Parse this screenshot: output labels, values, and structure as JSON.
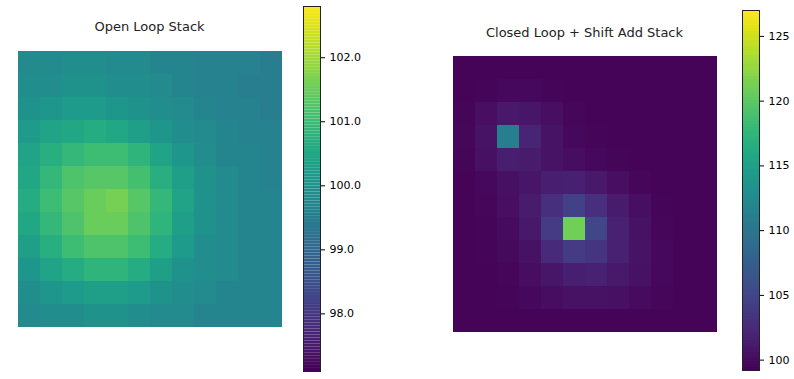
{
  "chart_data": [
    {
      "type": "heatmap",
      "title": "Open Loop Stack",
      "tick_labels": false,
      "color_range": [
        97.1,
        102.8
      ],
      "color_ticks": [
        98,
        99,
        100,
        101,
        102
      ],
      "cells": [
        [
          99.8,
          99.8,
          99.9,
          99.9,
          99.8,
          99.8,
          99.7,
          99.7,
          99.6,
          99.6,
          99.6,
          99.5
        ],
        [
          99.9,
          99.9,
          100.0,
          100.0,
          99.9,
          99.9,
          99.8,
          99.7,
          99.6,
          99.6,
          99.5,
          99.5
        ],
        [
          100.0,
          100.1,
          100.2,
          100.2,
          100.1,
          100.0,
          99.9,
          99.8,
          99.7,
          99.6,
          99.6,
          99.5
        ],
        [
          100.2,
          100.4,
          100.5,
          100.6,
          100.5,
          100.3,
          100.1,
          99.9,
          99.8,
          99.7,
          99.6,
          99.6
        ],
        [
          100.4,
          100.7,
          100.9,
          101.0,
          101.0,
          100.8,
          100.4,
          100.1,
          99.9,
          99.7,
          99.7,
          99.6
        ],
        [
          100.5,
          100.9,
          101.2,
          101.3,
          101.3,
          101.1,
          100.7,
          100.3,
          100.0,
          99.8,
          99.7,
          99.6
        ],
        [
          100.6,
          101.0,
          101.3,
          101.5,
          101.6,
          101.3,
          100.9,
          100.4,
          100.0,
          99.8,
          99.7,
          99.7
        ],
        [
          100.5,
          100.9,
          101.2,
          101.5,
          101.5,
          101.2,
          100.8,
          100.3,
          100.0,
          99.8,
          99.7,
          99.7
        ],
        [
          100.3,
          100.7,
          101.0,
          101.2,
          101.2,
          101.0,
          100.6,
          100.2,
          99.9,
          99.8,
          99.7,
          99.7
        ],
        [
          100.1,
          100.4,
          100.6,
          100.8,
          100.8,
          100.6,
          100.3,
          100.0,
          99.9,
          99.8,
          99.7,
          99.7
        ],
        [
          99.9,
          100.1,
          100.2,
          100.3,
          100.3,
          100.2,
          100.0,
          99.9,
          99.8,
          99.7,
          99.7,
          99.7
        ],
        [
          99.8,
          99.9,
          99.9,
          100.0,
          100.0,
          99.9,
          99.8,
          99.8,
          99.7,
          99.7,
          99.7,
          99.7
        ]
      ]
    },
    {
      "type": "heatmap",
      "title": "Closed Loop + Shift Add Stack",
      "tick_labels": false,
      "color_range": [
        99.2,
        127
      ],
      "color_ticks": [
        100,
        105,
        110,
        115,
        120,
        125
      ],
      "cells": [
        [
          99.5,
          99.5,
          99.5,
          99.5,
          99.5,
          99.5,
          99.5,
          99.5,
          99.5,
          99.5,
          99.5,
          99.5
        ],
        [
          99.5,
          99.6,
          99.8,
          99.8,
          99.6,
          99.5,
          99.5,
          99.5,
          99.5,
          99.5,
          99.5,
          99.5
        ],
        [
          99.6,
          100.2,
          101.0,
          100.8,
          100.2,
          99.7,
          99.5,
          99.5,
          99.5,
          99.5,
          99.5,
          99.5
        ],
        [
          99.7,
          100.6,
          111.0,
          102.0,
          100.6,
          99.8,
          99.6,
          99.5,
          99.5,
          99.5,
          99.5,
          99.5
        ],
        [
          99.6,
          100.3,
          101.5,
          101.2,
          100.6,
          100.1,
          99.8,
          99.6,
          99.5,
          99.5,
          99.5,
          99.5
        ],
        [
          99.5,
          99.8,
          100.3,
          100.8,
          101.5,
          101.6,
          101.0,
          100.2,
          99.7,
          99.5,
          99.5,
          99.5
        ],
        [
          99.5,
          99.7,
          100.2,
          101.2,
          103.0,
          104.5,
          103.0,
          101.2,
          100.2,
          99.6,
          99.5,
          99.5
        ],
        [
          99.5,
          99.6,
          100.0,
          101.0,
          104.0,
          121.0,
          105.0,
          101.8,
          100.4,
          99.7,
          99.5,
          99.5
        ],
        [
          99.5,
          99.6,
          99.9,
          100.5,
          102.5,
          104.0,
          103.5,
          101.8,
          100.6,
          99.8,
          99.5,
          99.5
        ],
        [
          99.5,
          99.5,
          99.7,
          100.1,
          100.8,
          101.5,
          101.8,
          101.0,
          100.4,
          99.8,
          99.5,
          99.5
        ],
        [
          99.5,
          99.5,
          99.6,
          99.8,
          100.1,
          100.4,
          100.5,
          100.3,
          100.0,
          99.7,
          99.5,
          99.5
        ],
        [
          99.5,
          99.5,
          99.5,
          99.5,
          99.5,
          99.5,
          99.5,
          99.5,
          99.5,
          99.5,
          99.5,
          99.5
        ]
      ]
    }
  ]
}
